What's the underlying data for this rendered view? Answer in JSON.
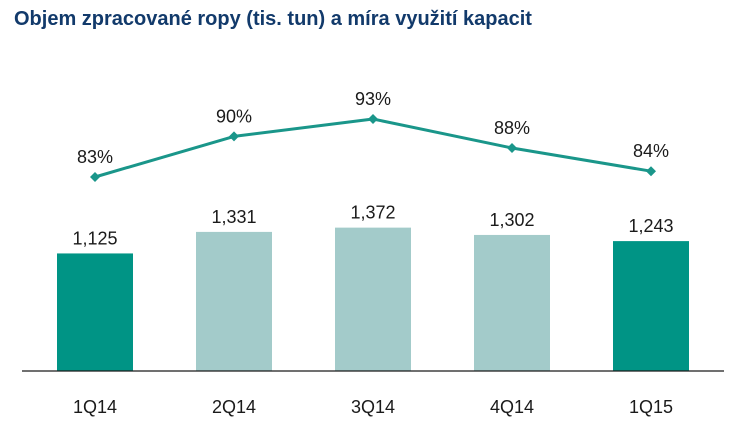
{
  "title": "Objem zpracované ropy (tis. tun) a míra využití kapacit",
  "colors": {
    "highlight": "#009485",
    "muted": "#a3cbca",
    "line": "#1a968a",
    "axis": "#1a1a1a",
    "title": "#123a6b"
  },
  "chart_data": {
    "type": "bar",
    "title": "Objem zpracované ropy (tis. tun) a míra využití kapacit",
    "categories": [
      "1Q14",
      "2Q14",
      "3Q14",
      "4Q14",
      "1Q15"
    ],
    "series": [
      {
        "type": "bar",
        "values": [
          1125,
          1331,
          1372,
          1302,
          1243
        ],
        "value_labels": [
          "1,125",
          "1,331",
          "1,372",
          "1,302",
          "1,243"
        ],
        "highlight": [
          true,
          false,
          false,
          false,
          true
        ]
      },
      {
        "type": "line",
        "values": [
          83,
          90,
          93,
          88,
          84
        ],
        "value_labels": [
          "83%",
          "90%",
          "93%",
          "88%",
          "84%"
        ]
      }
    ],
    "grid": false,
    "legend": "none"
  }
}
